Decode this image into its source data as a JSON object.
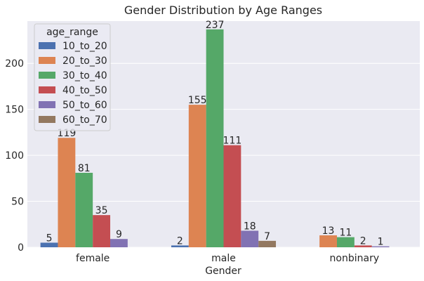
{
  "chart_data": {
    "type": "bar",
    "title": "Gender Distribution by Age Ranges",
    "xlabel": "Gender",
    "ylabel": "",
    "categories": [
      "female",
      "male",
      "nonbinary"
    ],
    "ylim": [
      0,
      246
    ],
    "yticks": [
      0,
      50,
      100,
      150,
      200
    ],
    "grid": true,
    "legend": {
      "title": "age_range",
      "placement": "top-left"
    },
    "series": [
      {
        "name": "10_to_20",
        "color": "#4c72b0",
        "values": [
          5,
          2,
          0
        ],
        "labels": [
          "5",
          "2",
          ""
        ]
      },
      {
        "name": "20_to_30",
        "color": "#dd8452",
        "values": [
          119,
          155,
          13
        ],
        "labels": [
          "119",
          "155",
          "13"
        ]
      },
      {
        "name": "30_to_40",
        "color": "#55a868",
        "values": [
          81,
          237,
          11
        ],
        "labels": [
          "81",
          "237",
          "11"
        ]
      },
      {
        "name": "40_to_50",
        "color": "#c44e52",
        "values": [
          35,
          111,
          2
        ],
        "labels": [
          "35",
          "111",
          "2"
        ]
      },
      {
        "name": "50_to_60",
        "color": "#8172b3",
        "values": [
          9,
          18,
          1
        ],
        "labels": [
          "9",
          "18",
          "1"
        ]
      },
      {
        "name": "60_to_70",
        "color": "#937860",
        "values": [
          0,
          7,
          0
        ],
        "labels": [
          "",
          "7",
          ""
        ]
      }
    ]
  }
}
